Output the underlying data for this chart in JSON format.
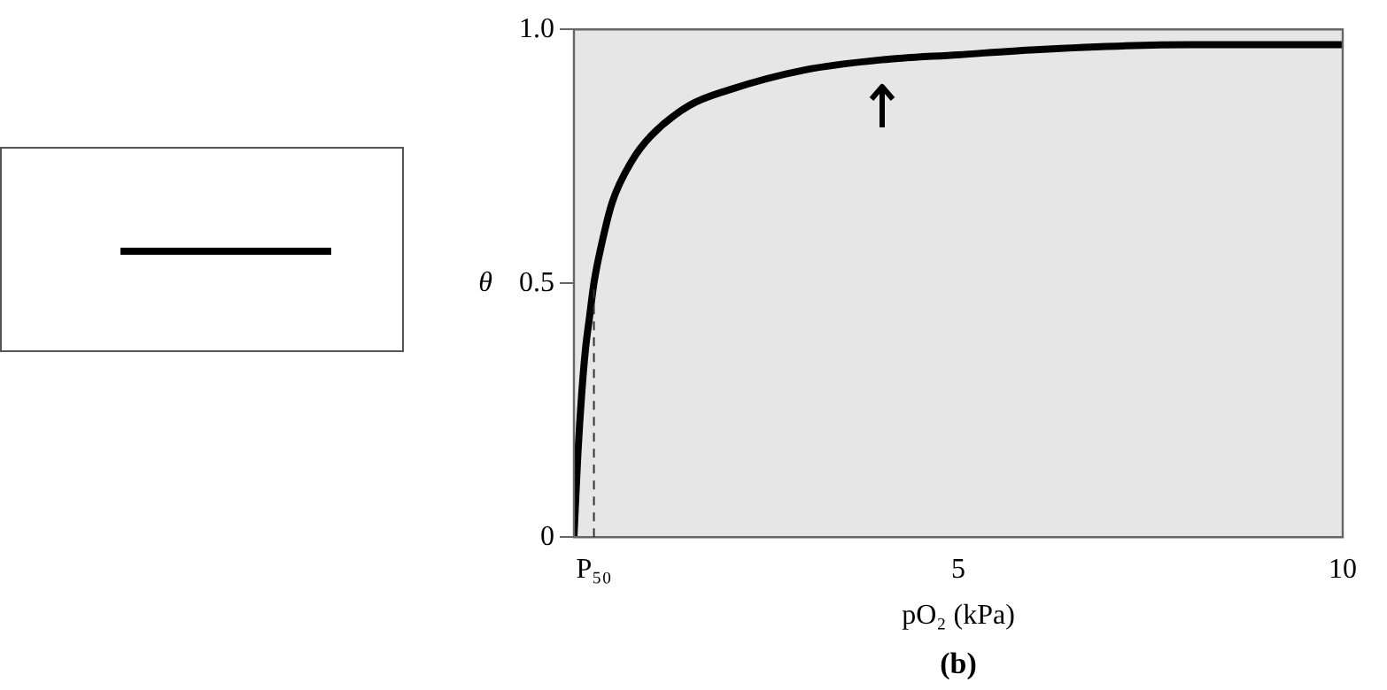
{
  "chart_data": {
    "type": "line",
    "xlabel": "pO₂ (kPa)",
    "ylabel": "θ",
    "annotations": [
      "(b)"
    ],
    "x": [
      0,
      0.05,
      0.1,
      0.15,
      0.2,
      0.26,
      0.35,
      0.5,
      0.75,
      1,
      1.5,
      2,
      3,
      4,
      5,
      6,
      8,
      10
    ],
    "series": [
      {
        "color": "#000000",
        "values": [
          0,
          0.16,
          0.28,
          0.37,
          0.43,
          0.5,
          0.57,
          0.66,
          0.74,
          0.79,
          0.85,
          0.88,
          0.92,
          0.94,
          0.95,
          0.96,
          0.97,
          0.97
        ]
      }
    ],
    "xlim": [
      0,
      10
    ],
    "xticks": [
      {
        "value": 0.26,
        "label": "P₅₀"
      },
      5,
      10
    ],
    "ylim": [
      0,
      1
    ],
    "yticks": [
      0,
      0.5,
      {
        "value": 1,
        "label": "1.0"
      }
    ],
    "ref_lines": [
      {
        "axis": "x",
        "value": 0.26,
        "line_style": "dashed"
      }
    ],
    "grid": false,
    "legend": false,
    "marker": "none",
    "line_style": "solid"
  }
}
